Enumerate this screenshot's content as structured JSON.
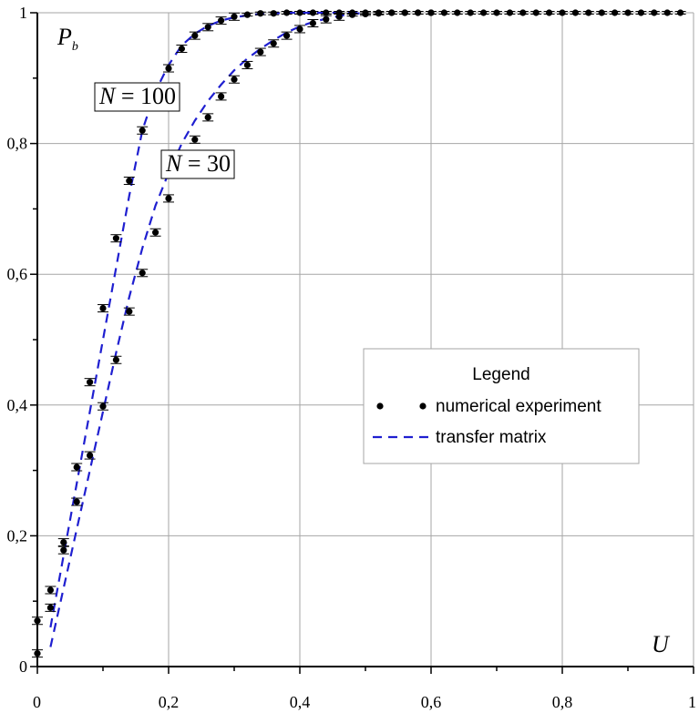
{
  "chart_data": {
    "type": "scatter",
    "title": "",
    "xlabel": "U",
    "ylabel_main": "P",
    "ylabel_sub": "b",
    "xlim": [
      0,
      1
    ],
    "ylim": [
      0,
      1
    ],
    "x_ticks": [
      0,
      0.2,
      0.4,
      0.6,
      0.8,
      1
    ],
    "x_tick_labels": [
      "0",
      "0,2",
      "0,4",
      "0,6",
      "0,8",
      "1"
    ],
    "y_ticks": [
      0,
      0.2,
      0.4,
      0.6,
      0.8,
      1
    ],
    "y_tick_labels": [
      "0",
      "0,2",
      "0,4",
      "0,6",
      "0,8",
      "1"
    ],
    "grid": true,
    "legend": {
      "title": "Legend",
      "position": "center-right",
      "items": [
        "numerical experiment",
        "transfer matrix"
      ]
    },
    "annotations": [
      {
        "italic": "N",
        "rest": " = 100"
      },
      {
        "italic": "N",
        "rest": " = 30"
      }
    ],
    "colors": {
      "points": "#000000",
      "transfer": "#1f1fd0",
      "grid": "#a6a6a6"
    },
    "series": [
      {
        "kind": "points",
        "x": [
          0,
          0.02,
          0.04,
          0.06,
          0.08,
          0.1,
          0.12,
          0.14,
          0.16,
          0.2,
          0.22,
          0.24,
          0.26,
          0.28,
          0.3,
          0.32,
          0.34,
          0.36,
          0.38,
          0.4,
          0.42,
          0.44,
          0.46,
          0.48,
          0.5,
          0.52,
          0.54,
          0.56,
          0.58,
          0.6,
          0.62,
          0.64,
          0.66,
          0.68,
          0.7,
          0.72,
          0.74,
          0.76,
          0.78,
          0.8,
          0.82,
          0.84,
          0.86,
          0.88,
          0.9,
          0.92,
          0.94,
          0.96,
          0.98
        ],
        "y": [
          0.07,
          0.117,
          0.19,
          0.305,
          0.435,
          0.548,
          0.655,
          0.743,
          0.82,
          0.915,
          0.945,
          0.965,
          0.978,
          0.988,
          0.994,
          0.997,
          0.999,
          0.999,
          1,
          1,
          1,
          1,
          1,
          1,
          1,
          1,
          1,
          1,
          1,
          1,
          1,
          1,
          1,
          1,
          1,
          1,
          1,
          1,
          1,
          1,
          1,
          1,
          1,
          1,
          1,
          1,
          1,
          1,
          1
        ]
      },
      {
        "kind": "points",
        "x": [
          0,
          0.02,
          0.04,
          0.06,
          0.08,
          0.1,
          0.12,
          0.14,
          0.16,
          0.18,
          0.2,
          0.24,
          0.26,
          0.28,
          0.3,
          0.32,
          0.34,
          0.36,
          0.38,
          0.4,
          0.42,
          0.44,
          0.46,
          0.48,
          0.5,
          0.52,
          0.54,
          0.56,
          0.58,
          0.6
        ],
        "y": [
          0.02,
          0.09,
          0.178,
          0.252,
          0.323,
          0.398,
          0.469,
          0.543,
          0.602,
          0.664,
          0.716,
          0.806,
          0.84,
          0.872,
          0.898,
          0.92,
          0.94,
          0.953,
          0.965,
          0.975,
          0.984,
          0.99,
          0.994,
          0.997,
          0.998,
          0.999,
          1,
          1,
          1,
          1
        ]
      },
      {
        "kind": "line",
        "x": [
          0.02,
          0.04,
          0.06,
          0.08,
          0.1,
          0.12,
          0.14,
          0.16,
          0.18,
          0.2,
          0.22,
          0.24,
          0.26,
          0.28,
          0.3,
          0.32,
          0.34,
          0.36,
          0.38,
          0.4,
          0.42,
          0.44,
          0.46,
          0.48,
          0.5
        ],
        "y": [
          0.06,
          0.17,
          0.28,
          0.39,
          0.5,
          0.61,
          0.72,
          0.82,
          0.88,
          0.92,
          0.95,
          0.968,
          0.98,
          0.988,
          0.993,
          0.996,
          0.998,
          0.999,
          1,
          1,
          1,
          1,
          1,
          1,
          1
        ]
      },
      {
        "kind": "line",
        "x": [
          0.02,
          0.04,
          0.06,
          0.08,
          0.1,
          0.12,
          0.14,
          0.16,
          0.18,
          0.2,
          0.22,
          0.24,
          0.26,
          0.28,
          0.3,
          0.32,
          0.34,
          0.36,
          0.38,
          0.4,
          0.42,
          0.44,
          0.46,
          0.48,
          0.5
        ],
        "y": [
          0.03,
          0.12,
          0.21,
          0.3,
          0.39,
          0.48,
          0.565,
          0.64,
          0.705,
          0.755,
          0.8,
          0.835,
          0.865,
          0.89,
          0.912,
          0.93,
          0.945,
          0.958,
          0.97,
          0.979,
          0.986,
          0.991,
          0.995,
          0.998,
          1
        ]
      }
    ]
  }
}
